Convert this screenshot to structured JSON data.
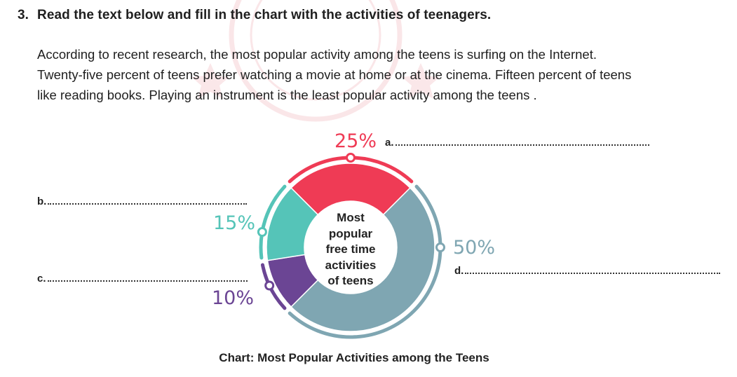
{
  "question": {
    "number": "3.",
    "text": "Read the text below and fill in the chart with the activities of teenagers."
  },
  "passage": {
    "line1": "According to recent research, the most popular activity among the teens is surfing on the Internet.",
    "line2": "Twenty-five percent of teens prefer watching a movie at home or at the cinema. Fifteen percent of teens",
    "line3": "like reading books. Playing an instrument is the least popular activity among the teens ."
  },
  "chart_data": {
    "type": "pie",
    "title": "Most popular free time activities of teens",
    "center_label": [
      "Most",
      "popular",
      "free time",
      "activities",
      "of teens"
    ],
    "caption": "Chart: Most Popular Activities among the Teens",
    "slices": [
      {
        "blank": "a.",
        "value": 25,
        "label": "25%",
        "color": "#ef3b55"
      },
      {
        "blank": "d.",
        "value": 50,
        "label": "50%",
        "color": "#7fa6b2"
      },
      {
        "blank": "c.",
        "value": 10,
        "label": "10%",
        "color": "#6b4594"
      },
      {
        "blank": "b.",
        "value": 15,
        "label": "15%",
        "color": "#55c4b8"
      }
    ]
  }
}
